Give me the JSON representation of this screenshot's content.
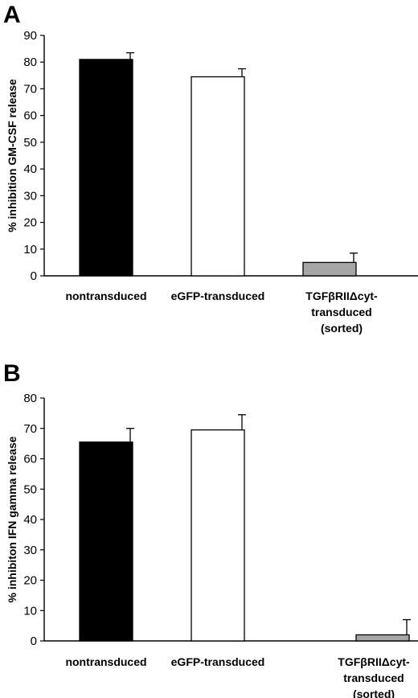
{
  "chart_data": [
    {
      "type": "bar",
      "panel": "A",
      "ylabel": "% inhibition GM-CSF release",
      "ylim": [
        0,
        90
      ],
      "yticks": [
        0,
        10,
        20,
        30,
        40,
        50,
        60,
        70,
        80,
        90
      ],
      "categories": [
        [
          "nontransduced"
        ],
        [
          "eGFP-transduced"
        ],
        [
          "TGFβRIIΔcyt-",
          "transduced",
          "(sorted)"
        ]
      ],
      "values": [
        81,
        74.5,
        5
      ],
      "errors": [
        2.5,
        3,
        3.5
      ],
      "colors": [
        "#000000",
        "#ffffff",
        "#a6a6a6"
      ],
      "grid": false
    },
    {
      "type": "bar",
      "panel": "B",
      "ylabel": "% inhibiton IFN gamma release",
      "ylim": [
        0,
        80
      ],
      "yticks": [
        0,
        10,
        20,
        30,
        40,
        50,
        60,
        70,
        80
      ],
      "categories": [
        [
          "nontransduced"
        ],
        [
          "eGFP-transduced"
        ],
        [
          "TGFβRIIΔcyt-",
          "transduced",
          "(sorted)"
        ]
      ],
      "values": [
        65.5,
        69.5,
        2
      ],
      "errors": [
        4.5,
        5,
        5
      ],
      "colors": [
        "#000000",
        "#ffffff",
        "#a6a6a6"
      ],
      "grid": false
    }
  ]
}
